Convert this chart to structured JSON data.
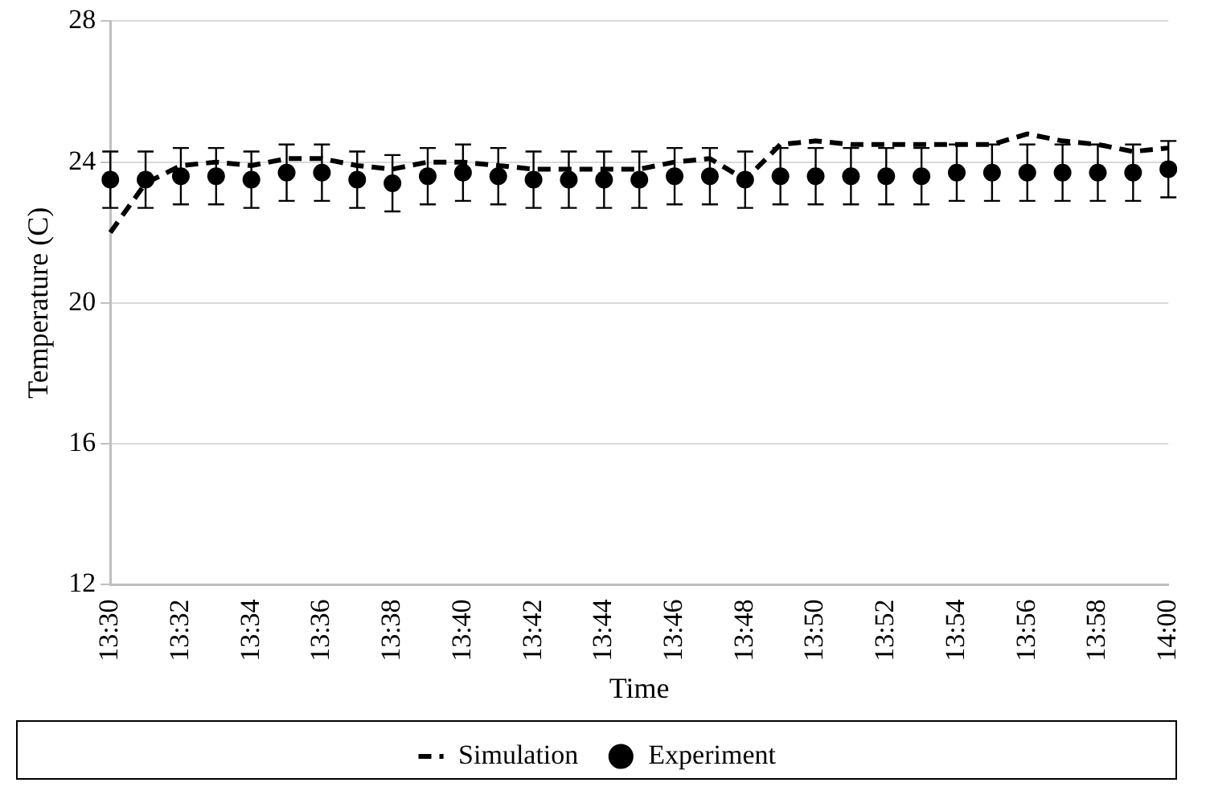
{
  "chart_data": {
    "type": "line",
    "xlabel": "Time",
    "ylabel": "Temperature (C)",
    "categories": [
      "13:30",
      null,
      "13:32",
      null,
      "13:34",
      null,
      "13:36",
      null,
      "13:38",
      null,
      "13:40",
      null,
      "13:42",
      null,
      "13:44",
      null,
      "13:46",
      null,
      "13:48",
      null,
      "13:50",
      null,
      "13:52",
      null,
      "13:54",
      null,
      "13:56",
      null,
      "13:58",
      null,
      "14:00"
    ],
    "series": [
      {
        "name": "Simulation",
        "color": "#000000",
        "line_style": "dashed",
        "marker": "none",
        "values": [
          22.0,
          23.4,
          23.9,
          24.0,
          23.9,
          24.1,
          24.1,
          23.9,
          23.8,
          24.0,
          24.0,
          23.9,
          23.8,
          23.8,
          23.8,
          23.8,
          24.0,
          24.1,
          23.5,
          24.5,
          24.6,
          24.5,
          24.5,
          24.5,
          24.5,
          24.5,
          24.8,
          24.6,
          24.5,
          24.3,
          24.4
        ]
      },
      {
        "name": "Experiment",
        "type": "scatter",
        "color": "#000000",
        "marker": "circle",
        "values": [
          23.5,
          23.5,
          23.6,
          23.6,
          23.5,
          23.7,
          23.7,
          23.5,
          23.4,
          23.6,
          23.7,
          23.6,
          23.5,
          23.5,
          23.5,
          23.5,
          23.6,
          23.6,
          23.5,
          23.6,
          23.6,
          23.6,
          23.6,
          23.6,
          23.7,
          23.7,
          23.7,
          23.7,
          23.7,
          23.7,
          23.8
        ],
        "errors": [
          0.8,
          0.8,
          0.8,
          0.8,
          0.8,
          0.8,
          0.8,
          0.8,
          0.8,
          0.8,
          0.8,
          0.8,
          0.8,
          0.8,
          0.8,
          0.8,
          0.8,
          0.8,
          0.8,
          0.8,
          0.8,
          0.8,
          0.8,
          0.8,
          0.8,
          0.8,
          0.8,
          0.8,
          0.8,
          0.8,
          0.8
        ]
      }
    ],
    "ylim": [
      12,
      28
    ],
    "yticks": [
      12,
      16,
      20,
      24,
      28
    ],
    "grid": "y",
    "legend": "bottom"
  }
}
